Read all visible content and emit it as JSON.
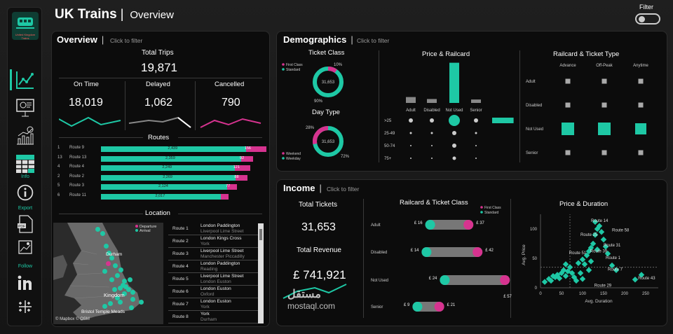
{
  "app": {
    "title": "UK Trains",
    "subtitle": "Overview",
    "filter_label": "Filter",
    "logo_text": "United Kingdom Trains"
  },
  "sidebar": {
    "items": [
      {
        "icon": "line-chart-icon"
      },
      {
        "icon": "presentation-chart-icon"
      },
      {
        "icon": "forecast-chart-icon"
      },
      {
        "icon": "table-icon"
      }
    ],
    "info_label": "Info",
    "export_label": "Export",
    "follow_label": "Follow"
  },
  "overview": {
    "title": "Overview",
    "hint": "Click to filter",
    "total_trips_label": "Total Trips",
    "total_trips": "19,871",
    "on_time_label": "On Time",
    "on_time": "18,019",
    "delayed_label": "Delayed",
    "delayed": "1,062",
    "cancelled_label": "Cancelled",
    "cancelled": "790",
    "routes_label": "Routes",
    "routes": [
      {
        "rank": "1",
        "name": "Route 9",
        "value": "2,439",
        "extra": "156",
        "v": 2439,
        "e": 156
      },
      {
        "rank": "13",
        "name": "Route 13",
        "value": "2,359",
        "extra": "92",
        "v": 2359,
        "e": 92
      },
      {
        "rank": "4",
        "name": "Route 4",
        "value": "2,249",
        "extra": "121",
        "v": 2249,
        "e": 121
      },
      {
        "rank": "2",
        "name": "Route 2",
        "value": "2,269",
        "extra": "88",
        "v": 2269,
        "e": 88
      },
      {
        "rank": "5",
        "name": "Route 3",
        "value": "2,124",
        "extra": "77",
        "v": 2124,
        "e": 77
      },
      {
        "rank": "6",
        "name": "Route 11",
        "value": "2,017",
        "extra": "",
        "v": 2017,
        "e": 60
      }
    ],
    "location_label": "Location",
    "map_legend": {
      "departure": "Departure",
      "arrival": "Arrival"
    },
    "map_labels": [
      "Durham",
      "Kingdom",
      "Bristol Temple Meads"
    ],
    "map_credit": "© Mapbox © OSM",
    "route_table": [
      {
        "route": "Route 1",
        "from": "London Paddington",
        "to": "Liverpool Lime Street"
      },
      {
        "route": "Route 2",
        "from": "London Kings Cross",
        "to": "York"
      },
      {
        "route": "Route 3",
        "from": "Liverpool Lime Street",
        "to": "Manchester Piccadilly"
      },
      {
        "route": "Route 4",
        "from": "London Paddington",
        "to": "Reading"
      },
      {
        "route": "Route 5",
        "from": "Liverpool Lime Street",
        "to": "London Euston"
      },
      {
        "route": "Route 6",
        "from": "London Euston",
        "to": "Oxford"
      },
      {
        "route": "Route 7",
        "from": "London Euston",
        "to": "York"
      },
      {
        "route": "Route 8",
        "from": "York",
        "to": "Durham"
      }
    ]
  },
  "demographics": {
    "title": "Demographics",
    "hint": "Click to filter",
    "ticket_class_label": "Ticket Class",
    "ticket_class": {
      "legend": [
        "First Class",
        "Standard"
      ],
      "total": "31,653",
      "pct_first": "10%",
      "pct_standard": "90%",
      "first": 0.1
    },
    "day_type_label": "Day Type",
    "day_type": {
      "legend": [
        "Weekend",
        "Weekday"
      ],
      "total": "31,653",
      "pct_weekend": "28%",
      "pct_weekday": "72%",
      "weekend": 0.28
    },
    "price_railcard_label": "Price & Railcard",
    "price_railcard": {
      "railcards": [
        "Adult",
        "Disabled",
        "Not Used",
        "Senior"
      ],
      "bar_values": [
        0.12,
        0.08,
        0.82,
        0.07
      ],
      "price_bands": [
        ">25",
        "25-49",
        "50-74",
        "75+"
      ],
      "dot_sizes": [
        [
          3,
          3,
          8,
          3
        ],
        [
          1.5,
          1.5,
          3,
          1.5
        ],
        [
          1,
          1,
          3,
          1
        ],
        [
          1,
          1,
          2.5,
          1
        ]
      ],
      "row_bar": [
        0.9,
        0,
        0,
        0
      ]
    },
    "railcard_ticket_label": "Railcard & Ticket Type",
    "railcard_ticket": {
      "columns": [
        "Advance",
        "Off-Peak",
        "Anytime"
      ],
      "rows": [
        "Adult",
        "Disabled",
        "Not Used",
        "Senior"
      ],
      "sizes": [
        [
          3.5,
          3.5,
          3.5
        ],
        [
          3.5,
          3.5,
          3.5
        ],
        [
          9,
          9,
          8
        ],
        [
          3.5,
          3.5,
          3.5
        ]
      ]
    }
  },
  "income": {
    "title": "Income",
    "hint": "Click to filter",
    "total_tickets_label": "Total Tickets",
    "total_tickets": "31,653",
    "total_revenue_label": "Total Revenue",
    "total_revenue": "£ 741,921",
    "railcard_class_label": "Railcard & Ticket Class",
    "railcard_class_legend": [
      "First Class",
      "Standard"
    ],
    "railcard_class": [
      {
        "railcard": "Adult",
        "standard": "£ 16",
        "first": "£ 37",
        "s": 16,
        "f": 37
      },
      {
        "railcard": "Disabled",
        "standard": "£ 14",
        "first": "£ 42",
        "s": 14,
        "f": 42
      },
      {
        "railcard": "Not Used",
        "standard": "£ 24",
        "first": "£ 57",
        "s": 24,
        "f": 57
      },
      {
        "railcard": "Senior",
        "standard": "£ 9",
        "first": "£ 21",
        "s": 9,
        "f": 21
      }
    ],
    "price_duration_label": "Price & Duration",
    "price_duration": {
      "xlabel": "Avg. Duration",
      "ylabel": "Avg. Price",
      "xticks": [
        "0",
        "50",
        "100",
        "150",
        "200",
        "250"
      ],
      "yticks": [
        "0",
        "50",
        "100"
      ],
      "labels": [
        {
          "t": "Route 14",
          "x": 120,
          "y": 112
        },
        {
          "t": "Route 58",
          "x": 170,
          "y": 96
        },
        {
          "t": "Route 25",
          "x": 95,
          "y": 88
        },
        {
          "t": "Route 31",
          "x": 150,
          "y": 70
        },
        {
          "t": "Route 39",
          "x": 118,
          "y": 60
        },
        {
          "t": "Route 51",
          "x": 68,
          "y": 57
        },
        {
          "t": "Route 1",
          "x": 155,
          "y": 49
        },
        {
          "t": "Route 7",
          "x": 160,
          "y": 29
        },
        {
          "t": "Route 43",
          "x": 232,
          "y": 14
        },
        {
          "t": "Route 29",
          "x": 128,
          "y": 2
        }
      ]
    }
  },
  "watermark": {
    "text": "مستقل",
    "url": "mostaql.com"
  },
  "colors": {
    "teal": "#1ec8a5",
    "magenta": "#d6338f",
    "panel": "#0c0c0c"
  }
}
